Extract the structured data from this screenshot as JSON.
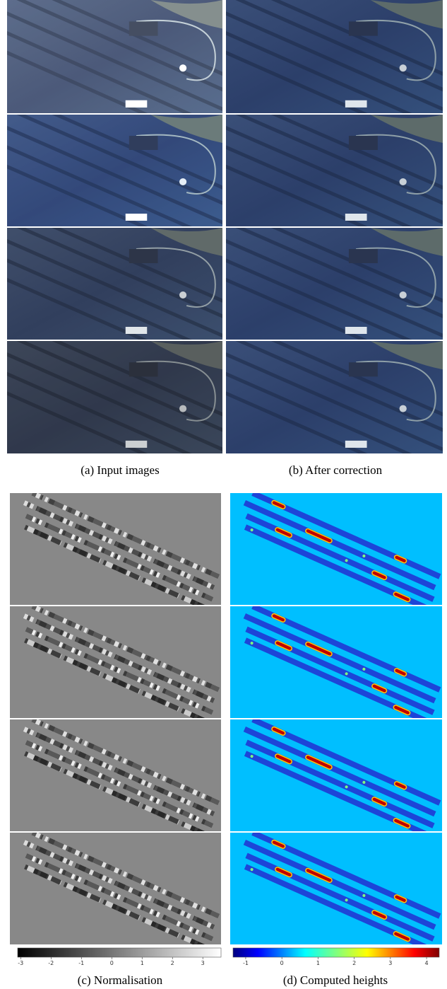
{
  "captions": [
    "(a) Input images",
    "(b) After correction"
  ],
  "chart_data": [
    {
      "type": "colorbar",
      "caption": "(c) Normalisation",
      "colormap": "gray",
      "xlim": [
        -3.1,
        3.6
      ],
      "xticks": [
        -3,
        -2,
        -1,
        0,
        1,
        2,
        3
      ]
    },
    {
      "type": "colorbar",
      "caption": "(d) Computed heights",
      "colormap": "jet",
      "xlim": [
        -1.35,
        4.35
      ],
      "xticks": [
        -1,
        0,
        1,
        2,
        3,
        4
      ]
    }
  ]
}
